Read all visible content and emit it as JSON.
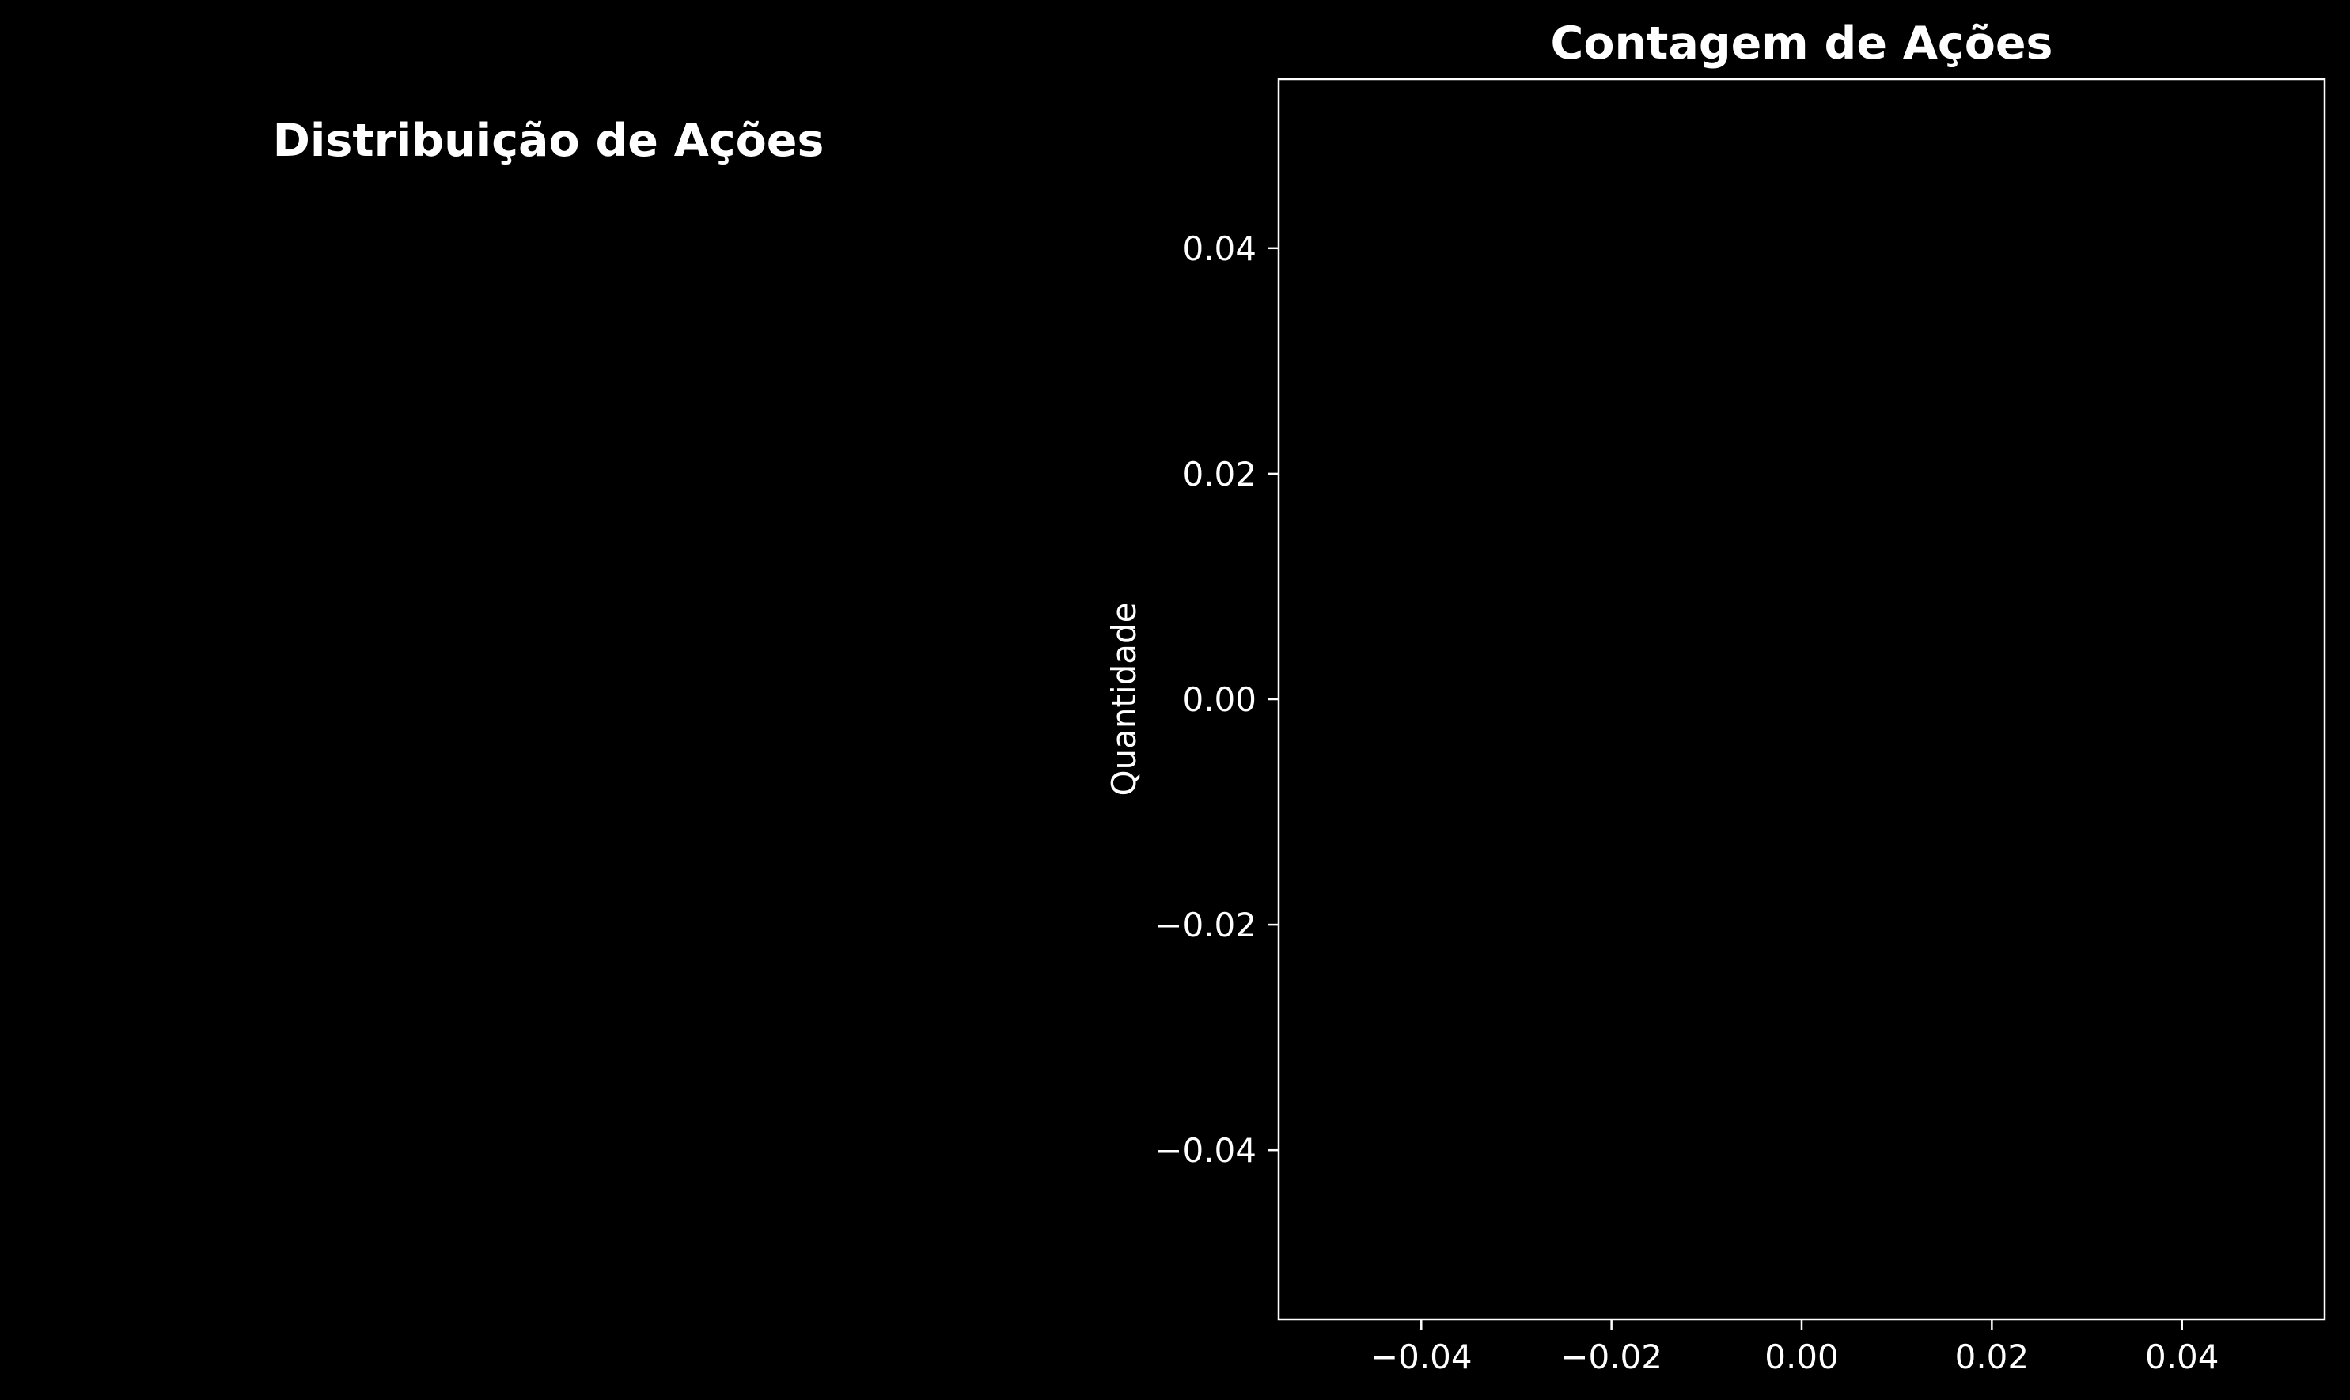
{
  "colors": {
    "background": "#000000",
    "foreground": "#ffffff"
  },
  "chart_data": [
    {
      "type": "pie",
      "title": "Distribuição de Ações",
      "categories": [],
      "values": []
    },
    {
      "type": "bar",
      "title": "Contagem de Ações",
      "xlabel": "",
      "ylabel": "Quantidade",
      "categories": [],
      "values": [],
      "xlim": [
        -0.055,
        0.055
      ],
      "ylim": [
        -0.055,
        0.055
      ],
      "xticks": [
        -0.04,
        -0.02,
        0.0,
        0.02,
        0.04
      ],
      "yticks": [
        -0.04,
        -0.02,
        0.0,
        0.02,
        0.04
      ],
      "xtick_labels": [
        "−0.04",
        "−0.02",
        "0.00",
        "0.02",
        "0.04"
      ],
      "ytick_labels": [
        "−0.04",
        "−0.02",
        "0.00",
        "0.02",
        "0.04"
      ],
      "grid": false
    }
  ]
}
